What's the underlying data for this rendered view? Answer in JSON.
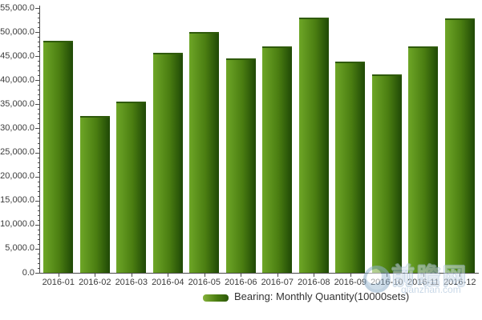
{
  "chart_data": {
    "type": "bar",
    "title": "",
    "xlabel": "",
    "ylabel": "",
    "categories": [
      "2016-01",
      "2016-02",
      "2016-03",
      "2016-04",
      "2016-05",
      "2016-06",
      "2016-07",
      "2016-08",
      "2016-09",
      "2016-10",
      "2016-11",
      "2016-12"
    ],
    "series": [
      {
        "name": "Bearing: Monthly Quantity(10000sets)",
        "values": [
          48200,
          32600,
          35500,
          45700,
          50000,
          44600,
          47000,
          53000,
          43800,
          41200,
          47100,
          52800
        ]
      }
    ],
    "ylim": [
      0,
      55000
    ],
    "y_tick_step": 5000,
    "y_minor_tick_step": 1000,
    "y_tick_labels": [
      "0.0",
      "5,000.0",
      "10,000.0",
      "15,000.0",
      "20,000.0",
      "25,000.0",
      "30,000.0",
      "35,000.0",
      "40,000.0",
      "45,000.0",
      "50,000.0",
      "55,000.0"
    ],
    "grid": false,
    "legend": {
      "position": "bottom",
      "entries": [
        "Bearing: Monthly Quantity(10000sets)"
      ]
    }
  },
  "colors": {
    "bar_gradient_light": "#6ea627",
    "bar_gradient_mid": "#4a7d11",
    "bar_gradient_dark": "#1f4806",
    "bar_top_edge": "#2f5a0c",
    "axis": "#4a4a4a",
    "tick_label": "#3b3b3b",
    "legend_text": "#333333",
    "background": "#ffffff",
    "watermark": "#9db9d4"
  },
  "watermark": {
    "site_name_cn": "前瞻网",
    "site_domain": "qianzhan.com"
  }
}
